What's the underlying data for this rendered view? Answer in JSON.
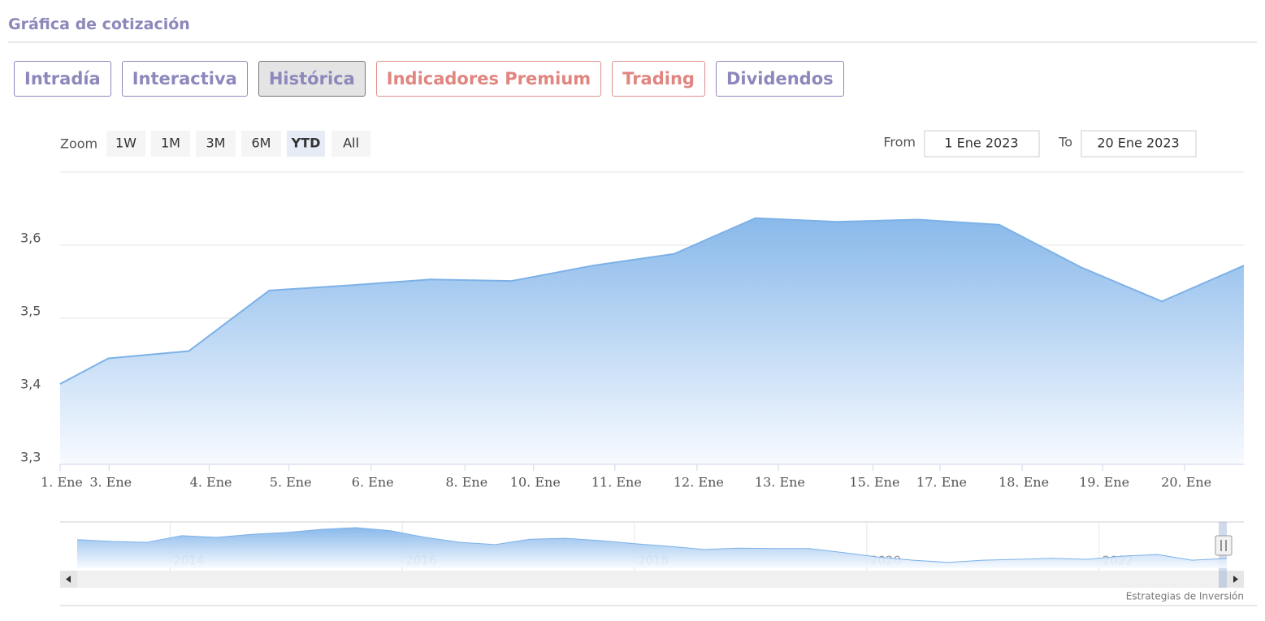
{
  "header": {
    "title": "Gráfica de cotización"
  },
  "tabs": {
    "items": [
      "Intradía",
      "Interactiva",
      "Histórica",
      "Indicadores Premium",
      "Trading",
      "Dividendos"
    ],
    "active": 2
  },
  "range_selector": {
    "zoom_label": "Zoom",
    "buttons": [
      "1W",
      "1M",
      "3M",
      "6M",
      "YTD",
      "All"
    ],
    "selected": 4,
    "from_label": "From",
    "from_value": "1 Ene 2023",
    "to_label": "To",
    "to_value": "20 Ene 2023"
  },
  "chart_data": [
    {
      "type": "area",
      "x": [
        0,
        0.61,
        1.63,
        2.65,
        3.67,
        4.69,
        5.72,
        6.75,
        7.78,
        8.81,
        9.84,
        10.87,
        11.9,
        12.93,
        13.96,
        15
      ],
      "values": [
        3.41,
        3.445,
        3.455,
        3.538,
        3.545,
        3.553,
        3.551,
        3.572,
        3.588,
        3.637,
        3.632,
        3.635,
        3.628,
        3.57,
        3.523,
        3.572
      ],
      "color": "#7cb1e8",
      "xlim": [
        0,
        15
      ],
      "xticks": [
        {
          "value": 0,
          "label": "1. Ene"
        },
        {
          "value": 0.62,
          "label": "3. Ene"
        },
        {
          "value": 1.89,
          "label": "4. Ene"
        },
        {
          "value": 2.9,
          "label": "5. Ene"
        },
        {
          "value": 3.94,
          "label": "6. Ene"
        },
        {
          "value": 5.13,
          "label": "8. Ene"
        },
        {
          "value": 6.0,
          "label": "10. Ene"
        },
        {
          "value": 7.03,
          "label": "11. Ene"
        },
        {
          "value": 8.07,
          "label": "12. Ene"
        },
        {
          "value": 9.1,
          "label": "13. Ene"
        },
        {
          "value": 10.3,
          "label": "15. Ene"
        },
        {
          "value": 11.15,
          "label": "17. Ene"
        },
        {
          "value": 12.19,
          "label": "18. Ene"
        },
        {
          "value": 13.21,
          "label": "19. Ene"
        },
        {
          "value": 14.25,
          "label": "20. Ene"
        }
      ],
      "ylim": [
        3.3,
        3.7
      ],
      "yticks": [
        {
          "value": 3.3,
          "label": "3,3"
        },
        {
          "value": 3.4,
          "label": "3,4"
        },
        {
          "value": 3.5,
          "label": "3,5"
        },
        {
          "value": 3.6,
          "label": "3,6"
        }
      ],
      "grid": true
    },
    {
      "type": "area",
      "x": [
        2013.2,
        2013.5,
        2013.8,
        2014.1,
        2014.4,
        2014.7,
        2015.0,
        2015.3,
        2015.6,
        2015.9,
        2016.2,
        2016.5,
        2016.8,
        2017.1,
        2017.4,
        2017.7,
        2018.0,
        2018.3,
        2018.6,
        2018.9,
        2019.2,
        2019.5,
        2019.8,
        2020.1,
        2020.4,
        2020.7,
        2021.0,
        2021.3,
        2021.6,
        2021.9,
        2022.2,
        2022.5,
        2022.8,
        2023.1
      ],
      "values": [
        6.4,
        6.0,
        5.8,
        7.3,
        6.9,
        7.6,
        8.0,
        8.7,
        9.1,
        8.4,
        6.9,
        5.8,
        5.3,
        6.5,
        6.7,
        6.2,
        5.5,
        4.9,
        4.2,
        4.5,
        4.4,
        4.4,
        3.5,
        2.5,
        1.8,
        1.3,
        1.8,
        2.0,
        2.2,
        2.0,
        2.7,
        3.1,
        1.8,
        2.2
      ],
      "color": "#7cb1e8",
      "xlim": [
        2013.2,
        2023.1
      ],
      "xticks": [
        2014,
        2016,
        2018,
        2020,
        2022
      ],
      "ylim": [
        0,
        10
      ]
    }
  ],
  "credits": "Estrategias de Inversión"
}
